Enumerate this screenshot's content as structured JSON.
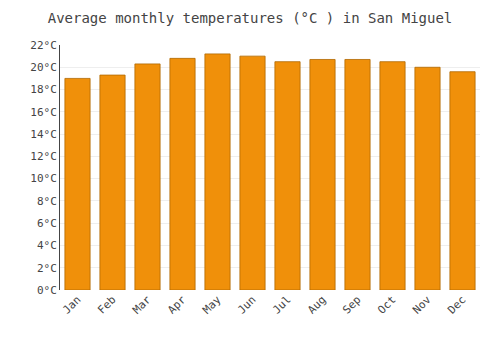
{
  "chart_data": {
    "type": "bar",
    "title": "Average monthly temperatures (°C ) in San Miguel",
    "categories": [
      "Jan",
      "Feb",
      "Mar",
      "Apr",
      "May",
      "Jun",
      "Jul",
      "Aug",
      "Sep",
      "Oct",
      "Nov",
      "Dec"
    ],
    "values": [
      19.0,
      19.3,
      20.3,
      20.8,
      21.2,
      21.0,
      20.5,
      20.7,
      20.7,
      20.5,
      20.0,
      19.6
    ],
    "color": "#F0900A",
    "ylim": [
      0,
      22
    ],
    "yticks": [
      {
        "value": 0,
        "label": "0°C"
      },
      {
        "value": 2,
        "label": "2°C"
      },
      {
        "value": 4,
        "label": "4°C"
      },
      {
        "value": 6,
        "label": "6°C"
      },
      {
        "value": 8,
        "label": "8°C"
      },
      {
        "value": 10,
        "label": "10°C"
      },
      {
        "value": 12,
        "label": "12°C"
      },
      {
        "value": 14,
        "label": "14°C"
      },
      {
        "value": 16,
        "label": "16°C"
      },
      {
        "value": 18,
        "label": "18°C"
      },
      {
        "value": 20,
        "label": "20°C"
      },
      {
        "value": 22,
        "label": "22°C"
      }
    ],
    "grid": true
  }
}
